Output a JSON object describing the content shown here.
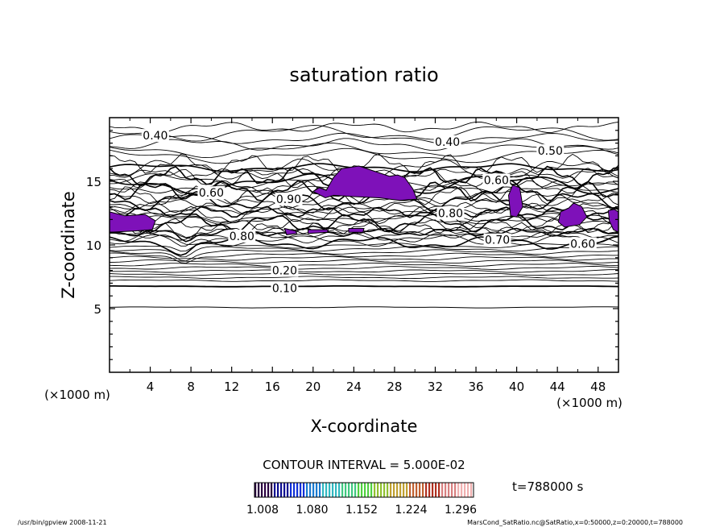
{
  "chart_data": {
    "type": "contour",
    "title": "saturation ratio",
    "xlabel": "X-coordinate",
    "ylabel": "Z-coordinate",
    "x_unit": "(×1000 m)",
    "x_unit_right": "(×1000 m)",
    "xlim": [
      0,
      50
    ],
    "ylim": [
      0,
      20
    ],
    "x_ticks": [
      4,
      8,
      12,
      16,
      20,
      24,
      28,
      32,
      36,
      40,
      44,
      48
    ],
    "y_ticks": [
      5,
      10,
      15
    ],
    "contour_interval_text": "CONTOUR INTERVAL = 5.000E-02",
    "time_text": "t=788000 s",
    "contour_labels": [
      {
        "text": "0.40",
        "x": 4.5,
        "y": 18.6
      },
      {
        "text": "0.40",
        "x": 33.2,
        "y": 18.1
      },
      {
        "text": "0.50",
        "x": 43.3,
        "y": 17.4
      },
      {
        "text": "0.60",
        "x": 38.0,
        "y": 15.1
      },
      {
        "text": "0.60",
        "x": 10.0,
        "y": 14.1
      },
      {
        "text": "0.90",
        "x": 17.6,
        "y": 13.6
      },
      {
        "text": "0.80",
        "x": 33.5,
        "y": 12.5
      },
      {
        "text": "0.70",
        "x": 38.1,
        "y": 10.4
      },
      {
        "text": "0.60",
        "x": 46.5,
        "y": 10.1
      },
      {
        "text": "0.80",
        "x": 13.0,
        "y": 10.7
      },
      {
        "text": "0.20",
        "x": 17.2,
        "y": 8.0
      },
      {
        "text": "0.10",
        "x": 17.2,
        "y": 6.6
      }
    ],
    "shaded_regions": [
      {
        "points": [
          [
            0,
            12.6
          ],
          [
            1.5,
            12.3
          ],
          [
            3.5,
            12.4
          ],
          [
            4.5,
            11.9
          ],
          [
            4.2,
            11.2
          ],
          [
            2.5,
            11.1
          ],
          [
            0,
            11.0
          ]
        ]
      },
      {
        "points": [
          [
            17.2,
            11.3
          ],
          [
            18.3,
            11.1
          ],
          [
            18.4,
            10.9
          ],
          [
            17.4,
            10.8
          ]
        ]
      },
      {
        "points": [
          [
            19.5,
            11.2
          ],
          [
            21.5,
            11.2
          ],
          [
            21.4,
            11.0
          ],
          [
            19.5,
            10.9
          ]
        ]
      },
      {
        "points": [
          [
            23.5,
            11.3
          ],
          [
            25.0,
            11.3
          ],
          [
            24.9,
            11.0
          ],
          [
            23.5,
            11.0
          ]
        ]
      },
      {
        "points": [
          [
            20.0,
            14.2
          ],
          [
            20.6,
            14.5
          ],
          [
            21.3,
            14.3
          ],
          [
            22.0,
            15.3
          ],
          [
            22.8,
            16.0
          ],
          [
            24.5,
            16.2
          ],
          [
            26.0,
            15.8
          ],
          [
            27.5,
            15.4
          ],
          [
            28.3,
            15.5
          ],
          [
            29.0,
            15.3
          ],
          [
            29.8,
            14.4
          ],
          [
            30.2,
            13.6
          ],
          [
            28.5,
            13.5
          ],
          [
            26.5,
            13.7
          ],
          [
            24.0,
            13.8
          ],
          [
            22.0,
            13.9
          ],
          [
            21.2,
            13.7
          ]
        ]
      },
      {
        "points": [
          [
            39.2,
            13.9
          ],
          [
            39.6,
            14.7
          ],
          [
            40.3,
            14.5
          ],
          [
            40.6,
            13.0
          ],
          [
            40.0,
            12.2
          ],
          [
            39.4,
            12.3
          ]
        ]
      },
      {
        "points": [
          [
            44.3,
            12.6
          ],
          [
            45.1,
            12.9
          ],
          [
            45.6,
            13.3
          ],
          [
            46.4,
            13.0
          ],
          [
            46.9,
            12.2
          ],
          [
            46.2,
            11.6
          ],
          [
            44.7,
            11.4
          ],
          [
            44.1,
            11.8
          ]
        ]
      },
      {
        "points": [
          [
            49.0,
            12.7
          ],
          [
            49.6,
            12.8
          ],
          [
            50,
            12.6
          ],
          [
            50,
            11.0
          ],
          [
            49.5,
            11.2
          ],
          [
            49.1,
            11.9
          ]
        ]
      }
    ],
    "colorbar": {
      "tick_labels": [
        "1.008",
        "1.080",
        "1.152",
        "1.224",
        "1.296"
      ],
      "colors": [
        "#2a0040",
        "#0a0a90",
        "#1030d8",
        "#1a7ad0",
        "#30b8c0",
        "#40c880",
        "#50d040",
        "#90c030",
        "#c0a030",
        "#c06030",
        "#b03020",
        "#d88080",
        "#f0b0b0"
      ]
    },
    "shade_color": "#7e11b9"
  },
  "footer": {
    "left": "/usr/bin/gpview   2008-11-21",
    "right": "MarsCond_SatRatio.nc@SatRatio,x=0:50000,z=0:20000,t=788000"
  }
}
